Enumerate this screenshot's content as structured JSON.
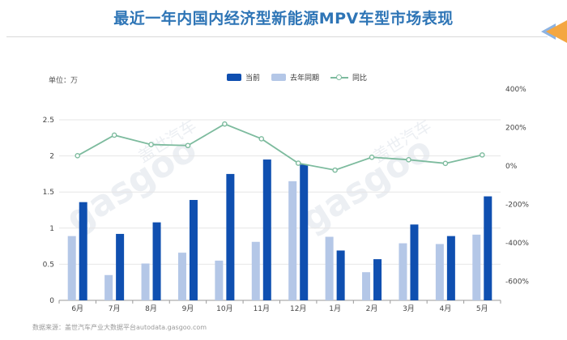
{
  "title": "最近一年内国内经济型新能源MPV车型市场表现",
  "unit_label": "单位：万",
  "source": "数据来源：盖世汽车产业大数据平台autodata.gasgoo.com",
  "watermark": {
    "brand": "盖世汽车",
    "logo": "gasgoo"
  },
  "colors": {
    "current": "#0f4fb0",
    "last_year": "#b4c7e7",
    "yoy": "#7dbb9e"
  },
  "chart_data": {
    "type": "bar",
    "categories": [
      "6月",
      "7月",
      "8月",
      "9月",
      "10月",
      "11月",
      "12月",
      "1月",
      "2月",
      "3月",
      "4月",
      "5月"
    ],
    "series": [
      {
        "name": "当前",
        "type": "bar",
        "axis": "left",
        "values": [
          1.36,
          0.92,
          1.08,
          1.39,
          1.75,
          1.95,
          1.88,
          0.69,
          0.57,
          1.05,
          0.89,
          1.44
        ]
      },
      {
        "name": "去年同期",
        "type": "bar",
        "axis": "left",
        "values": [
          0.89,
          0.35,
          0.51,
          0.66,
          0.55,
          0.81,
          1.65,
          0.88,
          0.39,
          0.79,
          0.78,
          0.91
        ]
      },
      {
        "name": "同比",
        "type": "line",
        "axis": "right",
        "unit": "%",
        "values": [
          53,
          160,
          111,
          106,
          218,
          141,
          14,
          -22,
          45,
          32,
          13,
          57
        ]
      }
    ],
    "y_left": {
      "min": 0,
      "max": 2.5,
      "ticks": [
        "0",
        "0.5",
        "1",
        "1.5",
        "2",
        "2.5"
      ]
    },
    "y_right": {
      "min": -700,
      "max": 400,
      "ticks": [
        "400%",
        "200%",
        "0%",
        "-200%",
        "-400%",
        "-600%"
      ]
    },
    "legend_position": "top-center",
    "grid": true
  }
}
